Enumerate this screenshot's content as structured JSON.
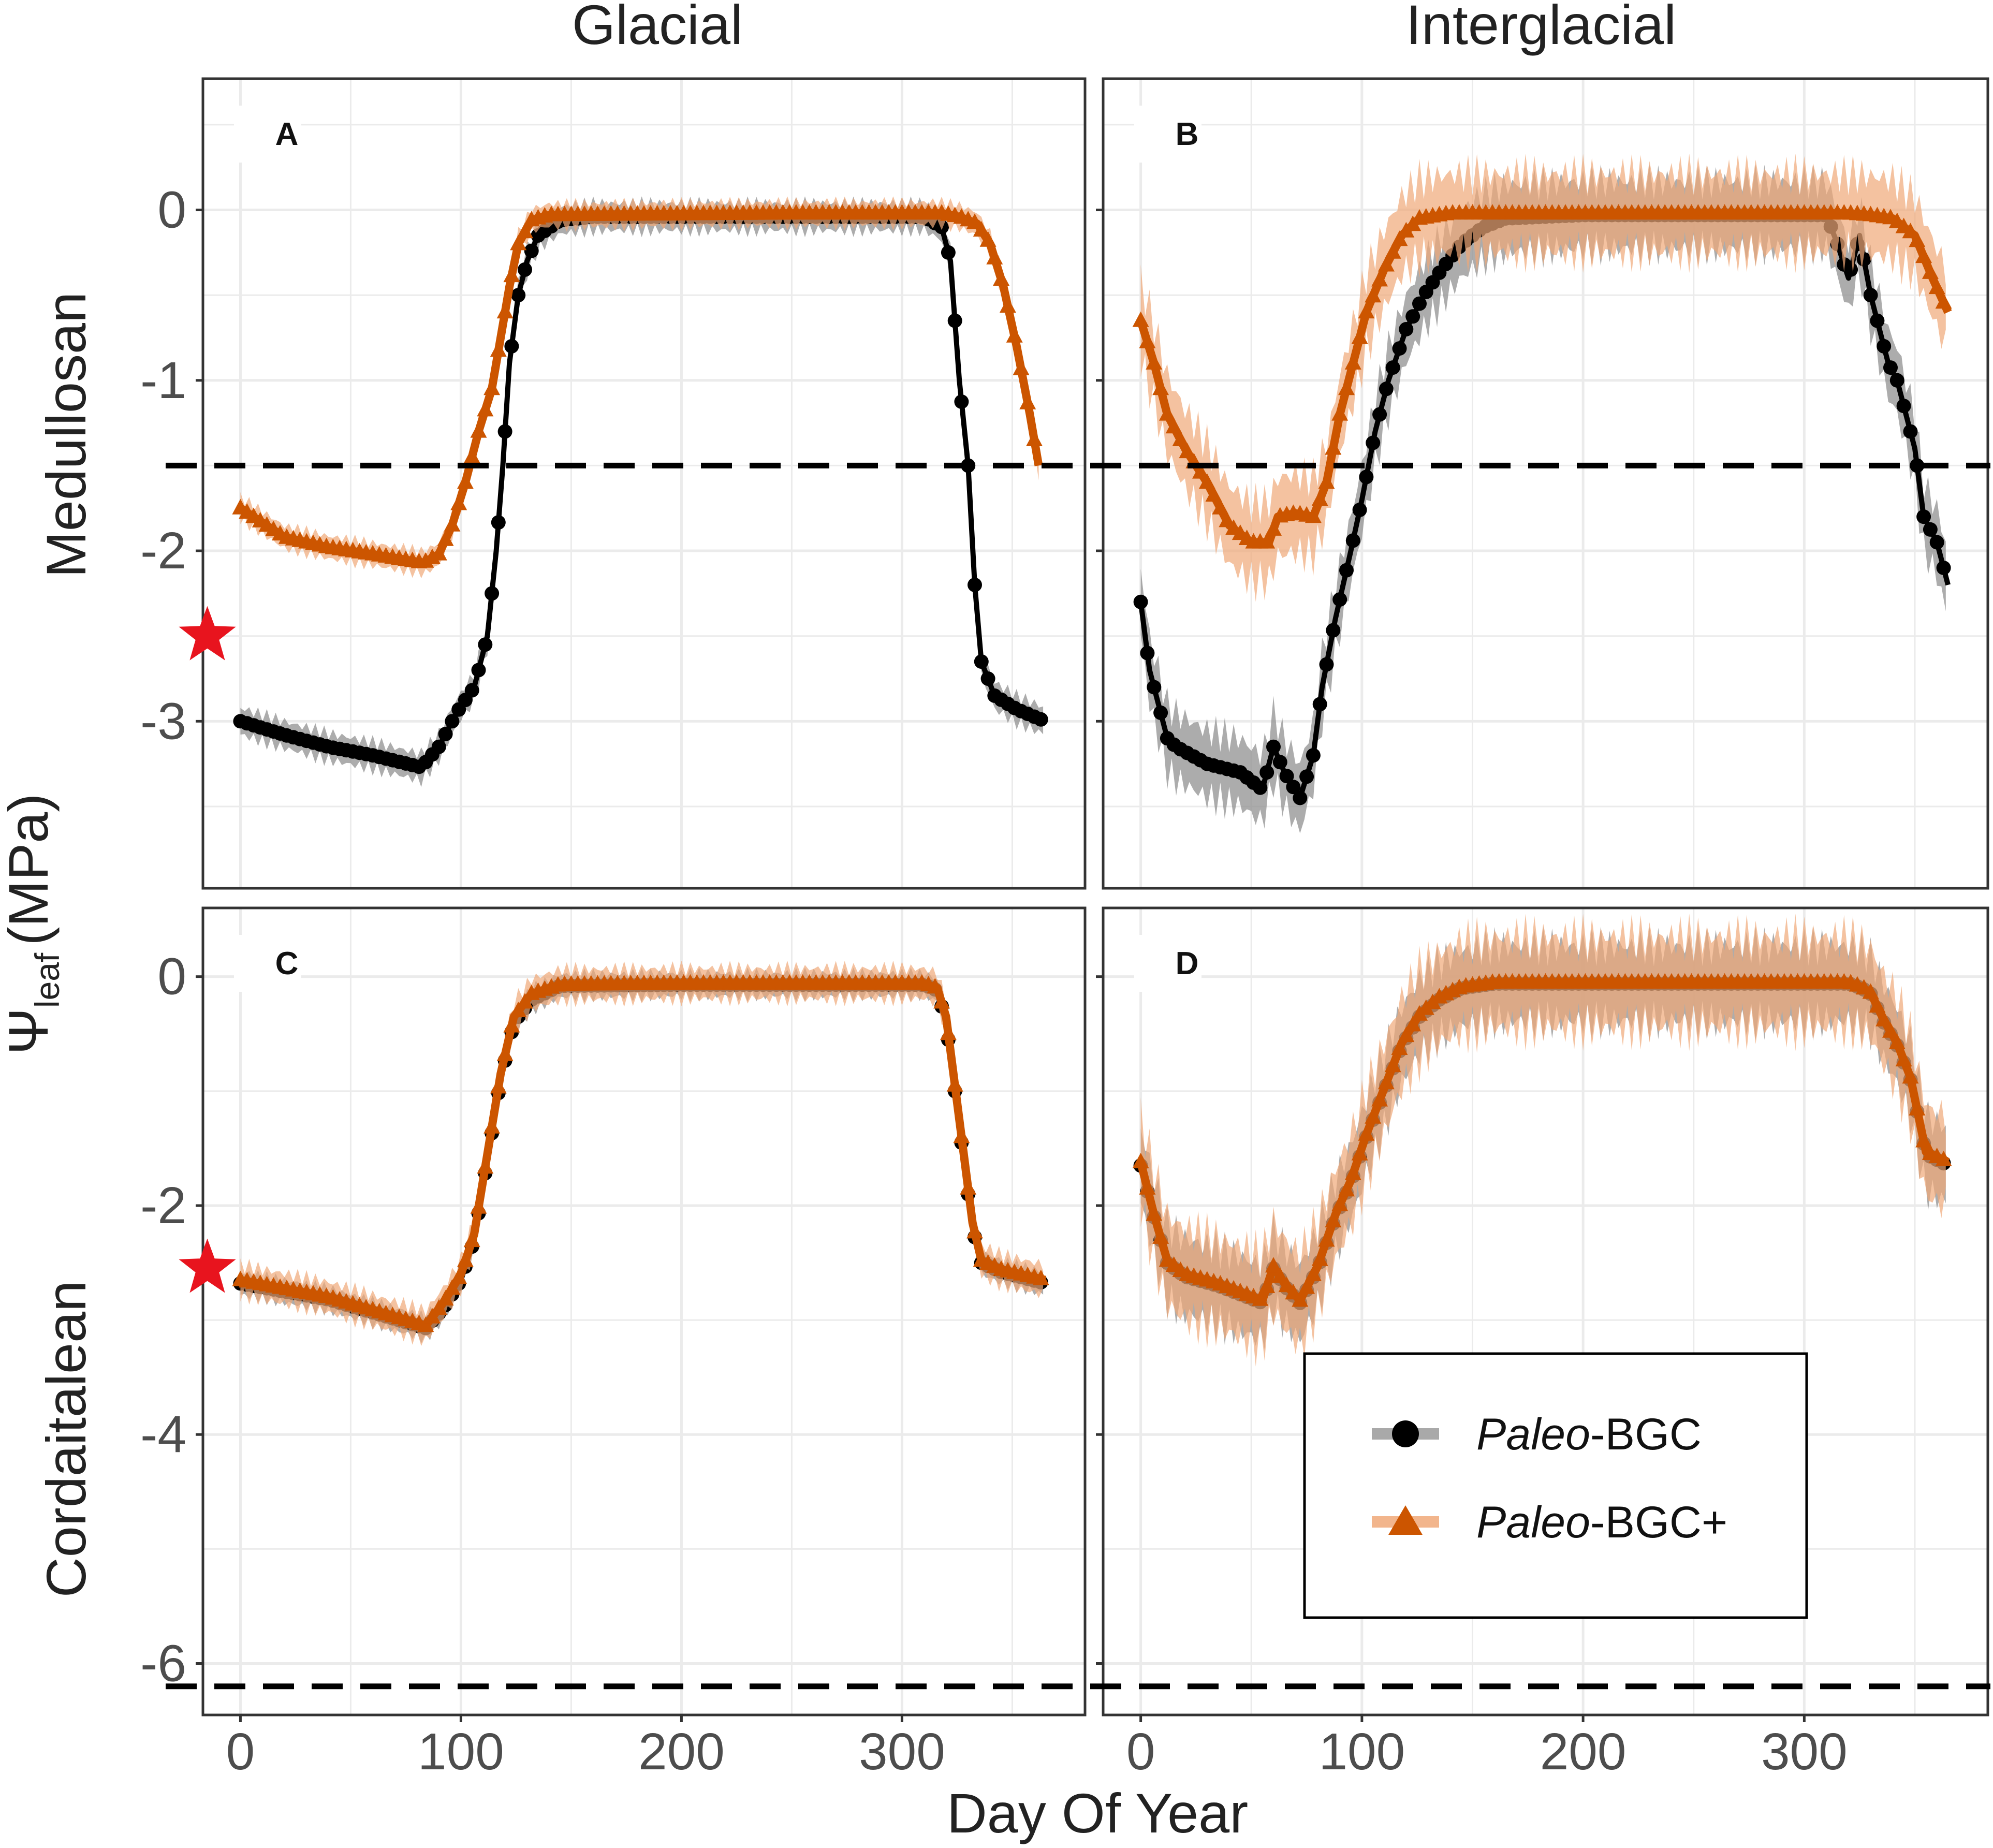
{
  "figure": {
    "col_titles": [
      "Glacial",
      "Interglacial"
    ],
    "row_titles": [
      "Medullosan",
      "Cordaitalean"
    ],
    "y_axis_label": {
      "symbol": "Ψ",
      "subscript": "leaf",
      "unit": "(MPa)"
    },
    "x_axis_label": "Day Of Year",
    "legend": [
      {
        "name_italic": "Paleo",
        "name_rest": "-BGC",
        "marker": "circle"
      },
      {
        "name_italic": "Paleo",
        "name_rest": "-BGC+",
        "marker": "triangle"
      }
    ],
    "colors": {
      "black_series": "#000000",
      "black_band": "#8c8c8c",
      "orange_series": "#cc5500",
      "orange_band": "#f0a878",
      "star": "#e8141e",
      "threshold": "#000000"
    }
  },
  "chart_data": [
    {
      "panel": "A",
      "type": "line",
      "row": "Medullosan",
      "column": "Glacial",
      "x_ticks": [
        0,
        100,
        200,
        300
      ],
      "xlim": [
        -17,
        383
      ],
      "y_ticks": [
        0,
        -1,
        -2,
        -3
      ],
      "y_tick_labels": [
        "0",
        "-1",
        "-2",
        "-3"
      ],
      "ylim": [
        -3.98,
        0.77
      ],
      "threshold": -1.5,
      "star": {
        "day": -15,
        "value": -2.5
      },
      "series": [
        {
          "name": "Paleo-BGC",
          "marker": "circle",
          "points": [
            [
              0,
              -3.0
            ],
            [
              20,
              -3.08
            ],
            [
              40,
              -3.15
            ],
            [
              60,
              -3.2
            ],
            [
              82,
              -3.27
            ],
            [
              90,
              -3.15
            ],
            [
              98,
              -2.95
            ],
            [
              106,
              -2.8
            ],
            [
              112,
              -2.5
            ],
            [
              116,
              -2.0
            ],
            [
              119,
              -1.5
            ],
            [
              122,
              -0.9
            ],
            [
              126,
              -0.5
            ],
            [
              130,
              -0.3
            ],
            [
              135,
              -0.15
            ],
            [
              145,
              -0.06
            ],
            [
              160,
              -0.04
            ],
            [
              250,
              -0.04
            ],
            [
              310,
              -0.04
            ],
            [
              318,
              -0.1
            ],
            [
              322,
              -0.3
            ],
            [
              326,
              -1.0
            ],
            [
              330,
              -1.5
            ],
            [
              333,
              -2.2
            ],
            [
              336,
              -2.65
            ],
            [
              342,
              -2.85
            ],
            [
              352,
              -2.93
            ],
            [
              365,
              -3.0
            ]
          ],
          "band": 0.12
        },
        {
          "name": "Paleo-BGC+",
          "marker": "triangle",
          "points": [
            [
              0,
              -1.75
            ],
            [
              20,
              -1.92
            ],
            [
              40,
              -1.98
            ],
            [
              60,
              -2.02
            ],
            [
              83,
              -2.07
            ],
            [
              90,
              -2.02
            ],
            [
              96,
              -1.85
            ],
            [
              102,
              -1.6
            ],
            [
              108,
              -1.3
            ],
            [
              114,
              -1.05
            ],
            [
              118,
              -0.75
            ],
            [
              122,
              -0.45
            ],
            [
              126,
              -0.2
            ],
            [
              132,
              -0.06
            ],
            [
              140,
              -0.03
            ],
            [
              250,
              -0.02
            ],
            [
              318,
              -0.02
            ],
            [
              326,
              -0.04
            ],
            [
              334,
              -0.08
            ],
            [
              340,
              -0.2
            ],
            [
              346,
              -0.45
            ],
            [
              352,
              -0.8
            ],
            [
              358,
              -1.2
            ],
            [
              362,
              -1.5
            ]
          ],
          "band": 0.1
        }
      ]
    },
    {
      "panel": "B",
      "type": "line",
      "row": "Medullosan",
      "column": "Interglacial",
      "x_ticks": [
        0,
        100,
        200,
        300
      ],
      "xlim": [
        -17,
        383
      ],
      "y_ticks": [
        0,
        -1,
        -2,
        -3
      ],
      "y_tick_labels": [
        "0",
        "-1",
        "-2",
        "-3"
      ],
      "ylim": [
        -3.98,
        0.77
      ],
      "threshold": -1.5,
      "series": [
        {
          "name": "Paleo-BGC",
          "marker": "circle",
          "points": [
            [
              0,
              -2.3
            ],
            [
              4,
              -2.7
            ],
            [
              8,
              -2.9
            ],
            [
              12,
              -3.1
            ],
            [
              16,
              -3.15
            ],
            [
              30,
              -3.25
            ],
            [
              45,
              -3.3
            ],
            [
              55,
              -3.4
            ],
            [
              60,
              -3.15
            ],
            [
              65,
              -3.3
            ],
            [
              72,
              -3.45
            ],
            [
              78,
              -3.2
            ],
            [
              82,
              -2.8
            ],
            [
              88,
              -2.4
            ],
            [
              95,
              -2.0
            ],
            [
              100,
              -1.7
            ],
            [
              106,
              -1.3
            ],
            [
              112,
              -1.0
            ],
            [
              120,
              -0.7
            ],
            [
              128,
              -0.5
            ],
            [
              136,
              -0.35
            ],
            [
              145,
              -0.2
            ],
            [
              155,
              -0.1
            ],
            [
              165,
              -0.05
            ],
            [
              200,
              -0.03
            ],
            [
              310,
              -0.03
            ],
            [
              315,
              -0.2
            ],
            [
              320,
              -0.4
            ],
            [
              325,
              -0.15
            ],
            [
              330,
              -0.5
            ],
            [
              334,
              -0.7
            ],
            [
              338,
              -0.9
            ],
            [
              342,
              -1.0
            ],
            [
              346,
              -1.2
            ],
            [
              350,
              -1.4
            ],
            [
              354,
              -1.8
            ],
            [
              360,
              -1.95
            ],
            [
              365,
              -2.2
            ]
          ],
          "band": 0.3
        },
        {
          "name": "Paleo-BGC+",
          "marker": "triangle",
          "points": [
            [
              0,
              -0.65
            ],
            [
              6,
              -0.9
            ],
            [
              12,
              -1.2
            ],
            [
              20,
              -1.4
            ],
            [
              30,
              -1.6
            ],
            [
              40,
              -1.85
            ],
            [
              50,
              -1.95
            ],
            [
              58,
              -1.95
            ],
            [
              62,
              -1.8
            ],
            [
              70,
              -1.78
            ],
            [
              78,
              -1.8
            ],
            [
              84,
              -1.6
            ],
            [
              90,
              -1.2
            ],
            [
              96,
              -0.9
            ],
            [
              102,
              -0.6
            ],
            [
              110,
              -0.35
            ],
            [
              118,
              -0.15
            ],
            [
              126,
              -0.05
            ],
            [
              140,
              -0.02
            ],
            [
              320,
              -0.02
            ],
            [
              330,
              -0.03
            ],
            [
              340,
              -0.05
            ],
            [
              350,
              -0.15
            ],
            [
              358,
              -0.4
            ],
            [
              365,
              -0.6
            ]
          ],
          "band": 0.35
        }
      ]
    },
    {
      "panel": "C",
      "type": "line",
      "row": "Cordaitalean",
      "column": "Glacial",
      "x_ticks": [
        0,
        100,
        200,
        300
      ],
      "xlim": [
        -17,
        383
      ],
      "y_ticks": [
        0,
        -2,
        -4,
        -6
      ],
      "y_tick_labels": [
        "0",
        "-2",
        "-4",
        "-6"
      ],
      "ylim": [
        -6.45,
        0.6
      ],
      "threshold": -6.2,
      "star": {
        "day": -15,
        "value": -2.55
      },
      "series": [
        {
          "name": "Paleo-BGC",
          "marker": "circle",
          "points": [
            [
              0,
              -2.68
            ],
            [
              40,
              -2.82
            ],
            [
              84,
              -3.07
            ],
            [
              92,
              -2.9
            ],
            [
              100,
              -2.65
            ],
            [
              106,
              -2.3
            ],
            [
              112,
              -1.6
            ],
            [
              118,
              -0.9
            ],
            [
              124,
              -0.4
            ],
            [
              132,
              -0.2
            ],
            [
              145,
              -0.08
            ],
            [
              200,
              -0.07
            ],
            [
              310,
              -0.07
            ],
            [
              316,
              -0.12
            ],
            [
              320,
              -0.4
            ],
            [
              324,
              -1.0
            ],
            [
              328,
              -1.6
            ],
            [
              332,
              -2.2
            ],
            [
              336,
              -2.5
            ],
            [
              345,
              -2.58
            ],
            [
              365,
              -2.68
            ]
          ],
          "band": 0.15
        },
        {
          "name": "Paleo-BGC+",
          "marker": "triangle",
          "points": [
            [
              0,
              -2.65
            ],
            [
              40,
              -2.8
            ],
            [
              84,
              -3.05
            ],
            [
              92,
              -2.85
            ],
            [
              100,
              -2.6
            ],
            [
              106,
              -2.25
            ],
            [
              112,
              -1.55
            ],
            [
              118,
              -0.85
            ],
            [
              124,
              -0.35
            ],
            [
              132,
              -0.15
            ],
            [
              145,
              -0.07
            ],
            [
              200,
              -0.06
            ],
            [
              310,
              -0.06
            ],
            [
              316,
              -0.1
            ],
            [
              320,
              -0.35
            ],
            [
              324,
              -0.95
            ],
            [
              328,
              -1.55
            ],
            [
              332,
              -2.15
            ],
            [
              336,
              -2.48
            ],
            [
              345,
              -2.56
            ],
            [
              365,
              -2.65
            ]
          ],
          "band": 0.2
        }
      ]
    },
    {
      "panel": "D",
      "type": "line",
      "row": "Cordaitalean",
      "column": "Interglacial",
      "x_ticks": [
        0,
        100,
        200,
        300
      ],
      "xlim": [
        -17,
        383
      ],
      "y_ticks": [
        0,
        -2,
        -4,
        -6
      ],
      "y_tick_labels": [
        "0",
        "-2",
        "-4",
        "-6"
      ],
      "ylim": [
        -6.45,
        0.6
      ],
      "threshold": -6.2,
      "series": [
        {
          "name": "Paleo-BGC",
          "marker": "circle",
          "points": [
            [
              0,
              -1.65
            ],
            [
              6,
              -2.1
            ],
            [
              12,
              -2.5
            ],
            [
              20,
              -2.62
            ],
            [
              35,
              -2.7
            ],
            [
              55,
              -2.85
            ],
            [
              60,
              -2.55
            ],
            [
              65,
              -2.7
            ],
            [
              72,
              -2.85
            ],
            [
              80,
              -2.55
            ],
            [
              88,
              -2.1
            ],
            [
              95,
              -1.8
            ],
            [
              102,
              -1.4
            ],
            [
              110,
              -1.0
            ],
            [
              118,
              -0.6
            ],
            [
              126,
              -0.35
            ],
            [
              135,
              -0.2
            ],
            [
              145,
              -0.1
            ],
            [
              160,
              -0.06
            ],
            [
              320,
              -0.06
            ],
            [
              326,
              -0.1
            ],
            [
              330,
              -0.15
            ],
            [
              336,
              -0.4
            ],
            [
              342,
              -0.6
            ],
            [
              348,
              -0.9
            ],
            [
              355,
              -1.55
            ],
            [
              365,
              -1.65
            ]
          ],
          "band": 0.5
        },
        {
          "name": "Paleo-BGC+",
          "marker": "triangle",
          "points": [
            [
              0,
              -1.62
            ],
            [
              6,
              -2.08
            ],
            [
              12,
              -2.48
            ],
            [
              20,
              -2.6
            ],
            [
              35,
              -2.68
            ],
            [
              55,
              -2.83
            ],
            [
              60,
              -2.53
            ],
            [
              65,
              -2.68
            ],
            [
              72,
              -2.83
            ],
            [
              80,
              -2.53
            ],
            [
              88,
              -2.08
            ],
            [
              95,
              -1.78
            ],
            [
              102,
              -1.38
            ],
            [
              110,
              -0.98
            ],
            [
              118,
              -0.58
            ],
            [
              126,
              -0.33
            ],
            [
              135,
              -0.18
            ],
            [
              145,
              -0.09
            ],
            [
              160,
              -0.05
            ],
            [
              320,
              -0.05
            ],
            [
              326,
              -0.09
            ],
            [
              330,
              -0.14
            ],
            [
              336,
              -0.38
            ],
            [
              342,
              -0.58
            ],
            [
              348,
              -0.88
            ],
            [
              355,
              -1.53
            ],
            [
              365,
              -1.62
            ]
          ],
          "band": 0.6
        }
      ]
    }
  ]
}
